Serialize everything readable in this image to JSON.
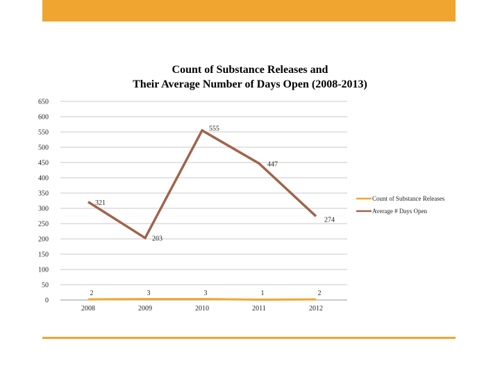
{
  "chart_data": {
    "type": "line",
    "title": [
      "Count of Substance Releases and",
      "Their Average Number of Days Open (2008-2013)"
    ],
    "categories": [
      "2008",
      "2009",
      "2010",
      "2011",
      "2012"
    ],
    "yticks": [
      0,
      50,
      100,
      150,
      200,
      250,
      300,
      350,
      400,
      450,
      500,
      550,
      600,
      650
    ],
    "ylim": [
      0,
      650
    ],
    "grid": true,
    "legend_position": "right",
    "series": [
      {
        "name": "Count of Substance Releases",
        "color": "#f0a530",
        "values": [
          2,
          3,
          3,
          1,
          2
        ],
        "labels": [
          "2",
          "3",
          "3",
          "1",
          "2"
        ]
      },
      {
        "name": "Average # Days Open",
        "color": "#a0634a",
        "values": [
          321,
          203,
          555,
          447,
          274
        ],
        "labels": [
          "321",
          "203",
          "555",
          "447",
          "274"
        ]
      }
    ]
  }
}
